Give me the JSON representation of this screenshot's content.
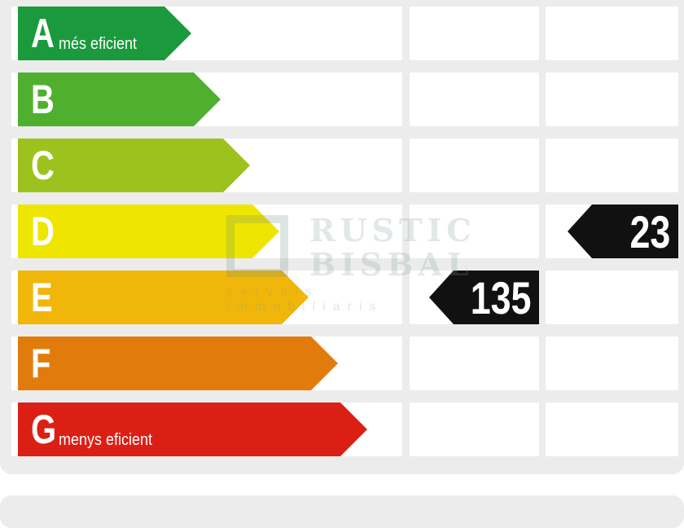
{
  "ratings": [
    {
      "letter": "A",
      "sub": "més eficient",
      "color": "#1a9a3c"
    },
    {
      "letter": "B",
      "sub": "",
      "color": "#4fb02f"
    },
    {
      "letter": "C",
      "sub": "",
      "color": "#9dc21d"
    },
    {
      "letter": "D",
      "sub": "",
      "color": "#eee500"
    },
    {
      "letter": "E",
      "sub": "",
      "color": "#f1b60a"
    },
    {
      "letter": "F",
      "sub": "",
      "color": "#e17c0c"
    },
    {
      "letter": "G",
      "sub": "menys eficient",
      "color": "#dc1f14"
    }
  ],
  "indicators": [
    {
      "value": "135",
      "rating": "E",
      "column": 1
    },
    {
      "value": "23",
      "rating": "D",
      "column": 2
    }
  ],
  "watermark": {
    "line1": "RUSTIC",
    "line2": "BISBAL",
    "line3": "serveis immobiliaris"
  }
}
